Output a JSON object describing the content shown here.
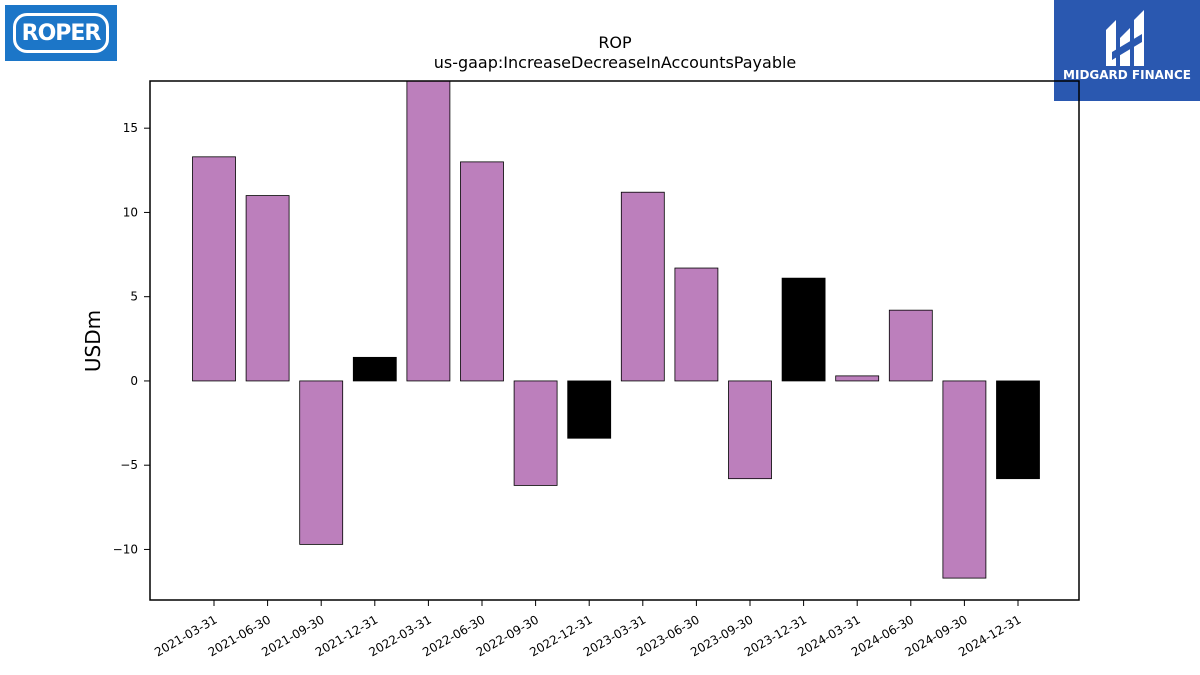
{
  "logos": {
    "left": {
      "text": "ROPER"
    },
    "right": {
      "text": "MIDGARD FINANCE"
    }
  },
  "colors": {
    "positive": "#bc7fbc",
    "negative": "#bc7fbc",
    "highlight": "#000000"
  },
  "chart_data": {
    "type": "bar",
    "title": "ROP",
    "subtitle": "us-gaap:IncreaseDecreaseInAccountsPayable",
    "xlabel": "",
    "ylabel": "USDm",
    "ylim": [
      -13,
      17.8
    ],
    "yticks": [
      -10,
      -5,
      0,
      5,
      10,
      15
    ],
    "ytick_labels": [
      "−10",
      "−5",
      "0",
      "5",
      "10",
      "15"
    ],
    "grid": false,
    "categories": [
      "2021-03-31",
      "2021-06-30",
      "2021-09-30",
      "2021-12-31",
      "2022-03-31",
      "2022-06-30",
      "2022-09-30",
      "2022-12-31",
      "2023-03-31",
      "2023-06-30",
      "2023-09-30",
      "2023-12-31",
      "2024-03-31",
      "2024-06-30",
      "2024-09-30",
      "2024-12-31"
    ],
    "values": [
      13.3,
      11.0,
      -9.7,
      1.4,
      18.0,
      13.0,
      -6.2,
      -3.4,
      11.2,
      6.7,
      -5.8,
      6.1,
      0.3,
      4.2,
      -11.7,
      -5.8
    ],
    "highlighted": [
      false,
      false,
      false,
      true,
      false,
      false,
      false,
      true,
      false,
      false,
      false,
      true,
      false,
      false,
      false,
      true
    ]
  }
}
